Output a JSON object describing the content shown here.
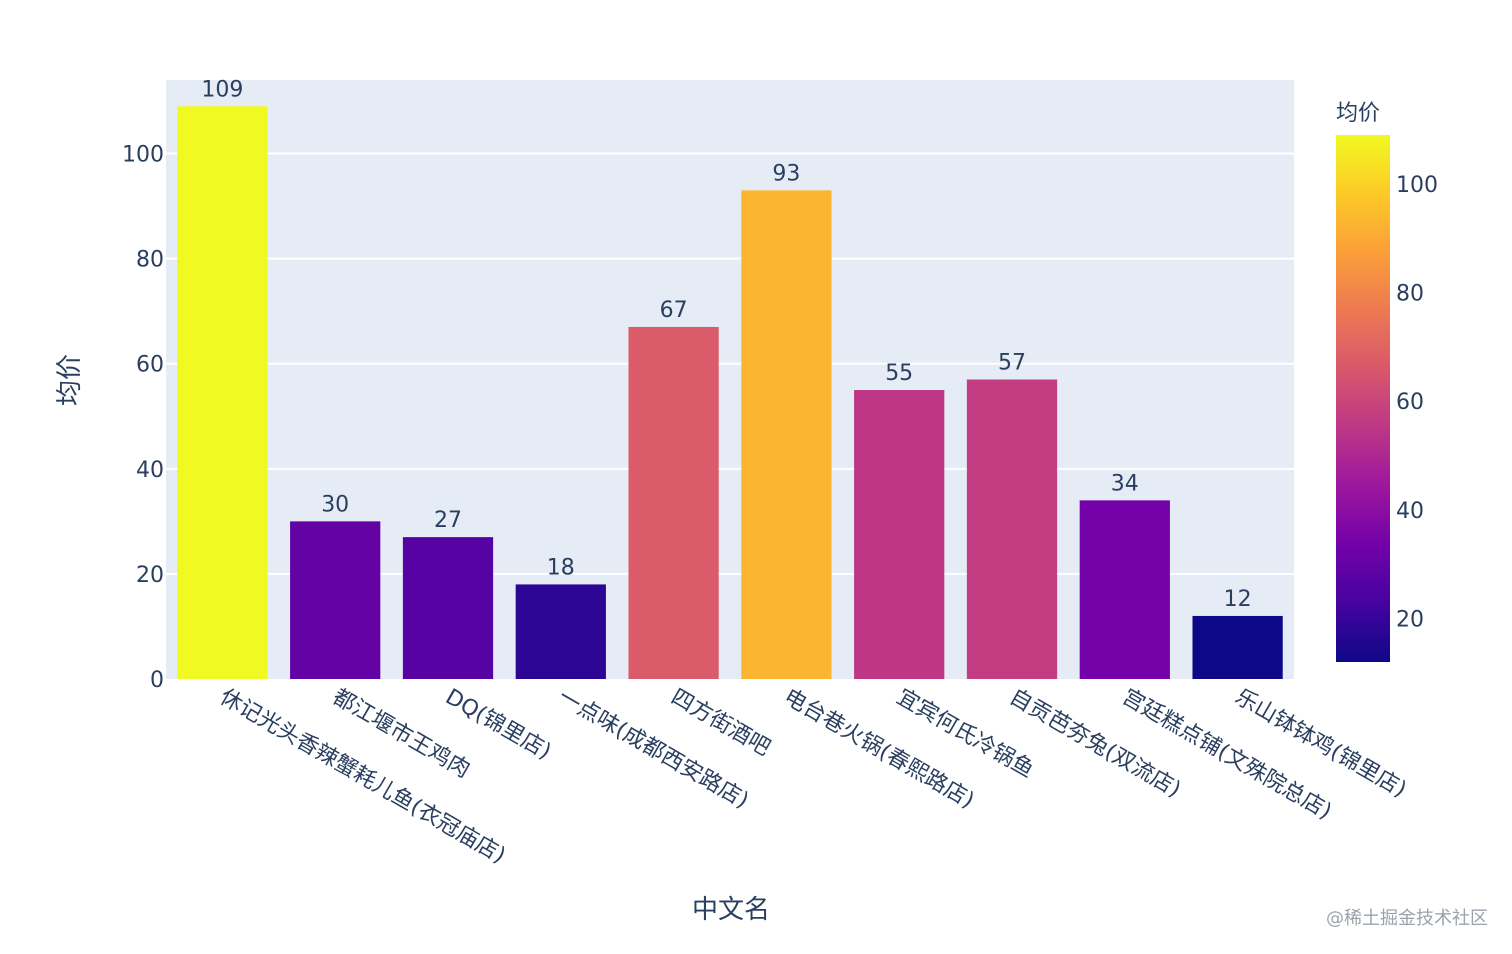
{
  "chart_data": {
    "type": "bar",
    "categories": [
      "休记光头香辣蟹耗儿鱼(衣冠庙店)",
      "都江堰市王鸡肉",
      "DQ(锦里店)",
      "一点味(成都西安路店)",
      "四方街酒吧",
      "电台巷火锅(春熙路店)",
      "宜宾何氏冷锅鱼",
      "自贡芭夯兔(双流店)",
      "宫廷糕点铺(文殊院总店)",
      "乐山钵钵鸡(锦里店)"
    ],
    "values": [
      109,
      30,
      27,
      18,
      67,
      93,
      55,
      57,
      34,
      12
    ],
    "title": "",
    "xlabel": "中文名",
    "ylabel": "均价",
    "ylim": [
      0,
      114
    ],
    "yticks": [
      0,
      20,
      40,
      60,
      80,
      100
    ],
    "grid": true,
    "colorbar": {
      "title": "均价",
      "range": [
        12,
        109
      ],
      "ticks": [
        20,
        40,
        60,
        80,
        100
      ],
      "colorscale": [
        "#0d0887",
        "#46039f",
        "#7201a8",
        "#9c179e",
        "#bd3786",
        "#d8576b",
        "#ed7953",
        "#fb9f3a",
        "#fdca26",
        "#f0f921"
      ]
    },
    "plot_bg": "#e5ecf6"
  },
  "watermark": "@稀土掘金技术社区"
}
